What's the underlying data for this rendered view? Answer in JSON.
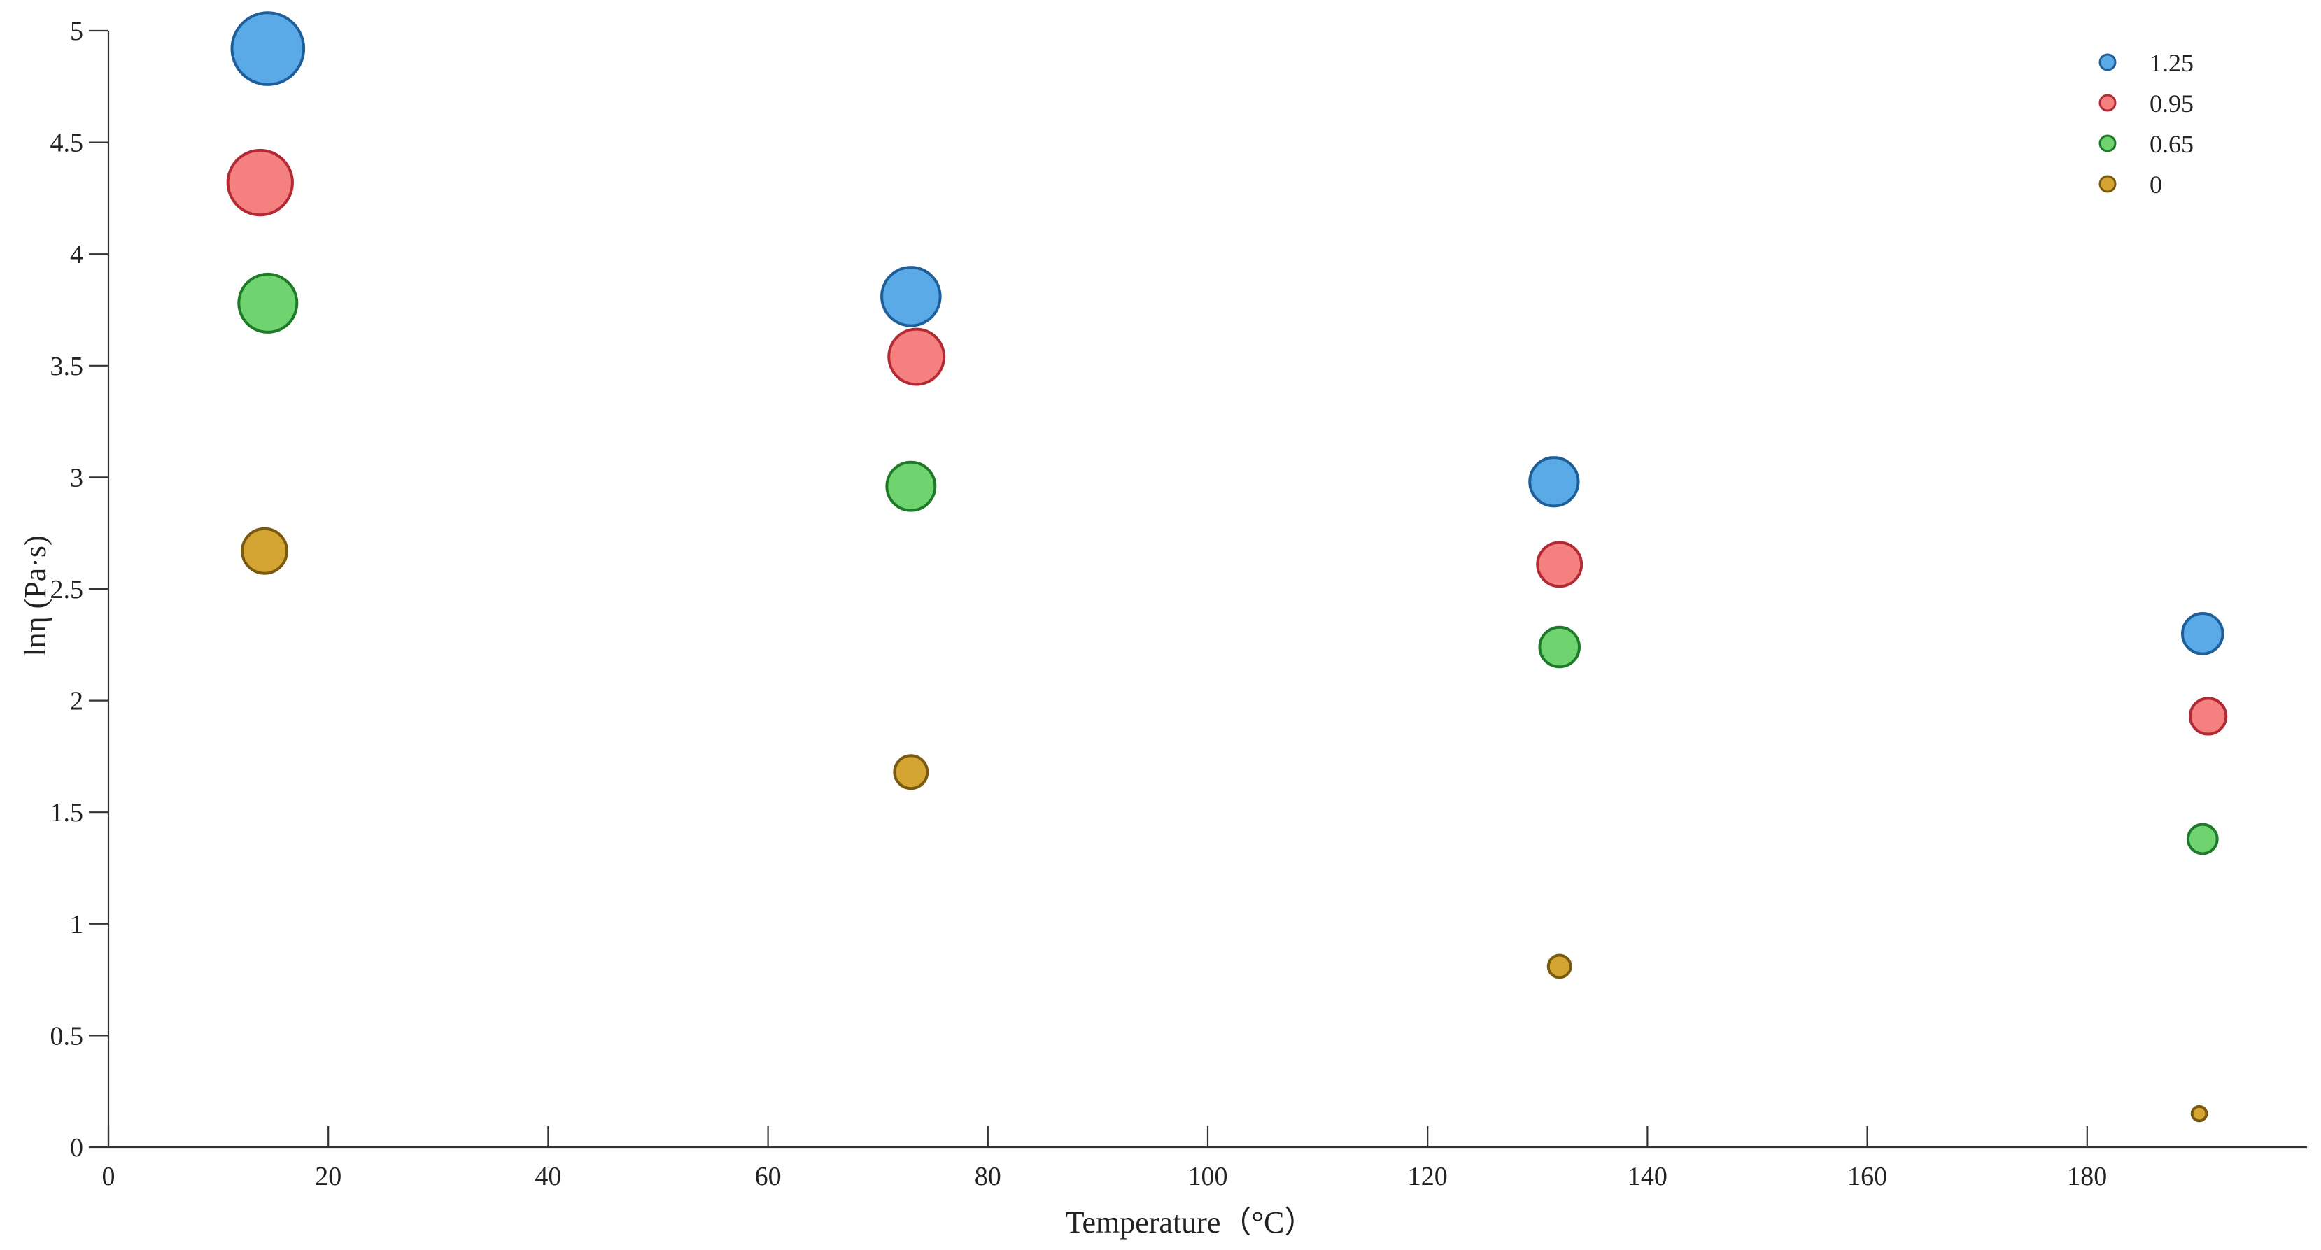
{
  "chart_data": {
    "type": "scatter",
    "title": "",
    "xlabel": "Temperature（°C）",
    "ylabel": "lnη (Pa·s)",
    "xlim": [
      0,
      200
    ],
    "ylim": [
      0,
      5
    ],
    "xticks": [
      0,
      20,
      40,
      60,
      80,
      100,
      120,
      140,
      160,
      180
    ],
    "yticks": [
      0,
      0.5,
      1,
      1.5,
      2,
      2.5,
      3,
      3.5,
      4,
      4.5,
      5
    ],
    "xtick_labels": [
      "0",
      "20",
      "40",
      "60",
      "80",
      "100",
      "120",
      "140",
      "160",
      "180"
    ],
    "ytick_labels": [
      "0",
      "0.5",
      "1",
      "1.5",
      "2",
      "2.5",
      "3",
      "3.5",
      "4",
      "4.5",
      "5"
    ],
    "grid": false,
    "legend_position": "top-right",
    "series": [
      {
        "name": "1.25",
        "color": "#5aaae8",
        "edge_color": "#1f5f99",
        "x": [
          14.5,
          73.0,
          131.5,
          190.5
        ],
        "y": [
          4.92,
          3.81,
          2.98,
          2.3
        ]
      },
      {
        "name": "0.95",
        "color": "#f58080",
        "edge_color": "#b32a35",
        "x": [
          13.8,
          73.5,
          132.0,
          191.0
        ],
        "y": [
          4.32,
          3.54,
          2.61,
          1.93
        ]
      },
      {
        "name": "0.65",
        "color": "#6fd46f",
        "edge_color": "#1e7a28",
        "x": [
          14.5,
          73.0,
          132.0,
          190.5
        ],
        "y": [
          3.78,
          2.96,
          2.24,
          1.38
        ]
      },
      {
        "name": "0",
        "color": "#d4a533",
        "edge_color": "#7a5a10",
        "x": [
          14.2,
          73.0,
          132.0,
          190.2
        ],
        "y": [
          2.67,
          1.68,
          0.81,
          0.15
        ]
      }
    ]
  }
}
